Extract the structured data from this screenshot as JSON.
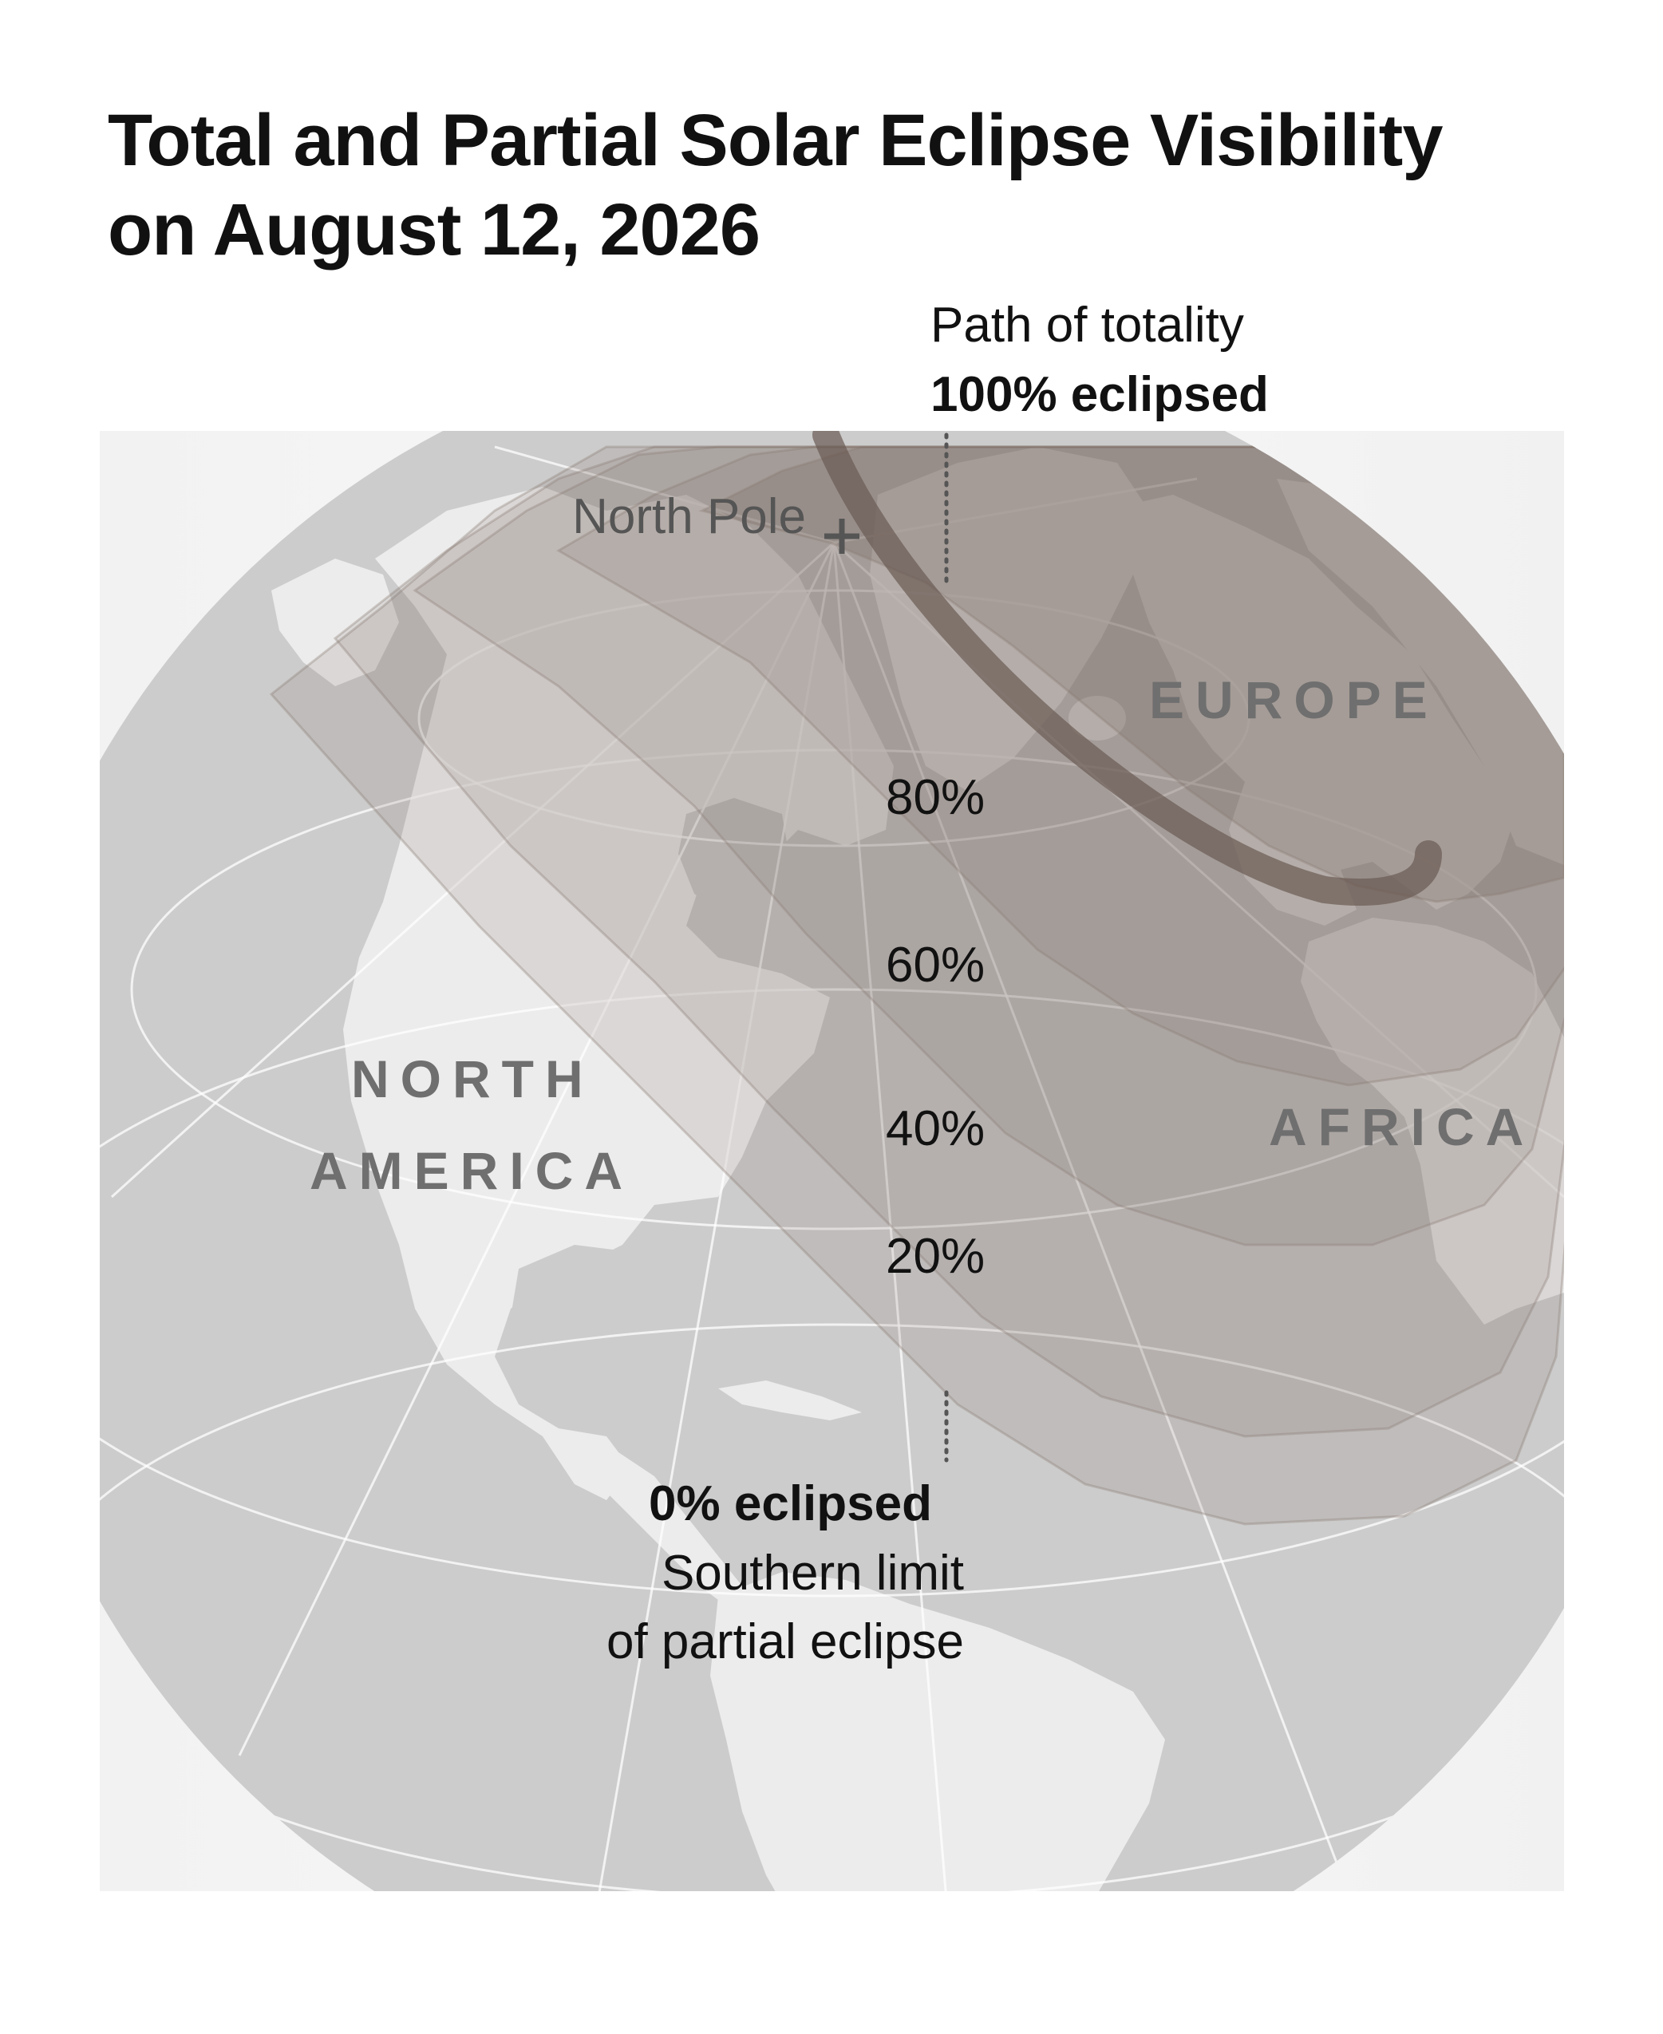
{
  "title": {
    "line1": "Total and Partial Solar Eclipse Visibility",
    "line2": "on August 12, 2026"
  },
  "callouts": {
    "totality_line1": "Path of totality",
    "totality_line2": "100% eclipsed",
    "zero_line1": "0% eclipsed",
    "zero_line2": "Southern limit",
    "zero_line3": "of partial eclipse"
  },
  "place_labels": {
    "north_pole": "North Pole",
    "europe": "EUROPE",
    "north_america_1": "NORTH",
    "north_america_2": "AMERICA",
    "africa": "AFRICA"
  },
  "bands": [
    {
      "label": "80%",
      "value": 80
    },
    {
      "label": "60%",
      "value": 60
    },
    {
      "label": "40%",
      "value": 40
    },
    {
      "label": "20%",
      "value": 20
    }
  ],
  "colors": {
    "ocean": "#cccccc",
    "land": "#ececec",
    "shadow": "#7b6a62",
    "totality": "#6a5a52",
    "graticule": "#ffffff",
    "text": "#111111",
    "region_text": "#6f6f6f"
  }
}
